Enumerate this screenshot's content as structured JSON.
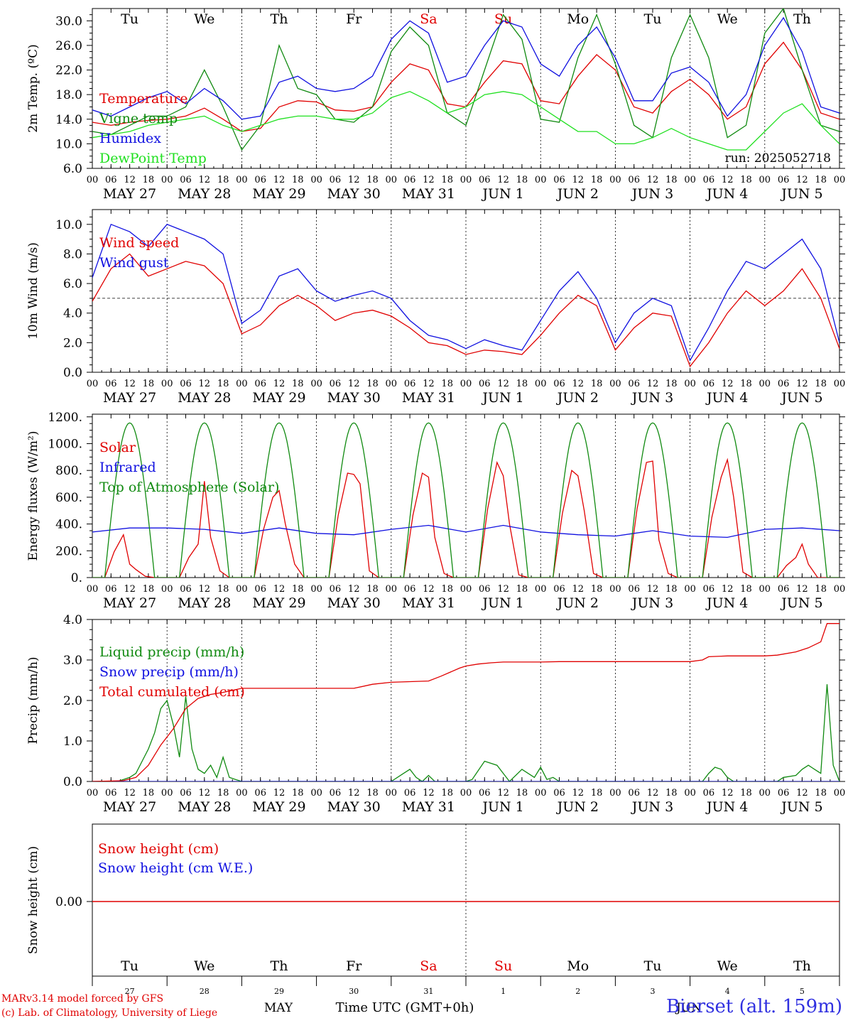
{
  "chart_data": [
    {
      "type": "line",
      "id": "temp",
      "ylabel": "2m Temp. (ºC)",
      "yticks": [
        "6.0",
        "10.0",
        "14.0",
        "18.0",
        "22.0",
        "26.0",
        "30.0"
      ],
      "ylim": [
        6,
        32
      ],
      "xlim_hours": [
        0,
        240
      ],
      "annotation": "run: 2025052718",
      "series": [
        {
          "name": "Temperature",
          "color": "#e00000",
          "x": [
            0,
            6,
            12,
            18,
            24,
            30,
            36,
            42,
            48,
            54,
            60,
            66,
            72,
            78,
            84,
            90,
            96,
            102,
            108,
            114,
            120,
            126,
            132,
            138,
            144,
            150,
            156,
            162,
            168,
            174,
            180,
            186,
            192,
            198,
            204,
            210,
            216,
            222,
            228,
            234,
            240
          ],
          "y": [
            13.5,
            13,
            13.5,
            13.8,
            14,
            14.5,
            15.8,
            14,
            12,
            12.5,
            16,
            17,
            16.8,
            15.5,
            15.3,
            16,
            20,
            23,
            22,
            16.5,
            16,
            20,
            23.5,
            23,
            17,
            16.5,
            21,
            24.5,
            22,
            16,
            15,
            18.5,
            20.5,
            18,
            14,
            16,
            23,
            26.5,
            22,
            15,
            14
          ]
        },
        {
          "name": "Vigne temp",
          "color": "#108a10",
          "x": [
            0,
            6,
            12,
            18,
            24,
            30,
            36,
            42,
            48,
            54,
            60,
            66,
            72,
            78,
            84,
            90,
            96,
            102,
            108,
            114,
            120,
            126,
            132,
            138,
            144,
            150,
            156,
            162,
            168,
            174,
            180,
            186,
            192,
            198,
            204,
            210,
            216,
            222,
            228,
            234,
            240
          ],
          "y": [
            12,
            11.5,
            13,
            14.5,
            14.5,
            16,
            22,
            16,
            9,
            13,
            26,
            19,
            18,
            14,
            13.5,
            16,
            25,
            29,
            26,
            15,
            13,
            22,
            31,
            27,
            14,
            13.5,
            24,
            31,
            23,
            13,
            11,
            24,
            31,
            24,
            11,
            13,
            28,
            32,
            22,
            13,
            12
          ]
        },
        {
          "name": "Humidex",
          "color": "#1010e0",
          "x": [
            0,
            6,
            12,
            18,
            24,
            30,
            36,
            42,
            48,
            54,
            60,
            66,
            72,
            78,
            84,
            90,
            96,
            102,
            108,
            114,
            120,
            126,
            132,
            138,
            144,
            150,
            156,
            162,
            168,
            174,
            180,
            186,
            192,
            198,
            204,
            210,
            216,
            222,
            228,
            234,
            240
          ],
          "y": [
            15.5,
            14.5,
            16,
            17.5,
            18.5,
            16.5,
            19,
            17,
            14,
            14.5,
            20,
            21,
            19,
            18.5,
            19,
            21,
            27,
            30,
            28,
            20,
            21,
            26,
            30,
            29,
            23,
            21,
            26,
            29,
            24,
            17,
            17,
            21.5,
            22.5,
            20,
            14.5,
            18,
            26,
            30.5,
            25,
            16,
            15
          ]
        },
        {
          "name": "DewPoint Temp",
          "color": "#20e020",
          "x": [
            0,
            6,
            12,
            18,
            24,
            30,
            36,
            42,
            48,
            54,
            60,
            66,
            72,
            78,
            84,
            90,
            96,
            102,
            108,
            114,
            120,
            126,
            132,
            138,
            144,
            150,
            156,
            162,
            168,
            174,
            180,
            186,
            192,
            198,
            204,
            210,
            216,
            222,
            228,
            234,
            240
          ],
          "y": [
            11,
            11.5,
            12,
            13,
            13.5,
            14,
            14.5,
            13,
            12,
            13,
            14,
            14.5,
            14.5,
            14,
            14,
            15,
            17.5,
            18.5,
            17,
            15,
            16,
            18,
            18.5,
            18,
            16,
            14,
            12,
            12,
            10,
            10,
            11,
            12.5,
            11,
            10,
            9,
            9,
            12,
            15,
            16.5,
            13,
            10
          ]
        }
      ],
      "day_labels": [
        "Tu",
        "We",
        "Th",
        "Fr",
        "Sa",
        "Su",
        "Mo",
        "Tu",
        "We",
        "Th"
      ],
      "date_labels": [
        "MAY 27",
        "MAY 28",
        "MAY 29",
        "MAY 30",
        "MAY 31",
        "JUN  1",
        "JUN  2",
        "JUN  3",
        "JUN  4",
        "JUN  5"
      ]
    },
    {
      "type": "line",
      "id": "wind",
      "ylabel": "10m Wind (m/s)",
      "yticks": [
        "0.0",
        "2.0",
        "4.0",
        "6.0",
        "8.0",
        "10.0"
      ],
      "ylim": [
        0,
        11
      ],
      "reference_line": 5,
      "series": [
        {
          "name": "Wind speed",
          "color": "#e00000",
          "x": [
            0,
            6,
            12,
            18,
            24,
            30,
            36,
            42,
            48,
            54,
            60,
            66,
            72,
            78,
            84,
            90,
            96,
            102,
            108,
            114,
            120,
            126,
            132,
            138,
            144,
            150,
            156,
            162,
            168,
            174,
            180,
            186,
            192,
            198,
            204,
            210,
            216,
            222,
            228,
            234,
            240
          ],
          "y": [
            4.8,
            7,
            8,
            6.5,
            7,
            7.5,
            7.2,
            6,
            2.6,
            3.2,
            4.5,
            5.2,
            4.5,
            3.5,
            4,
            4.2,
            3.8,
            3,
            2,
            1.8,
            1.2,
            1.5,
            1.4,
            1.2,
            2.5,
            4,
            5.2,
            4.5,
            1.5,
            3,
            4,
            3.8,
            0.4,
            2,
            4,
            5.5,
            4.5,
            5.5,
            7,
            5,
            1.6
          ]
        },
        {
          "name": "Wind gust",
          "color": "#1010e0",
          "x": [
            0,
            6,
            12,
            18,
            24,
            30,
            36,
            42,
            48,
            54,
            60,
            66,
            72,
            78,
            84,
            90,
            96,
            102,
            108,
            114,
            120,
            126,
            132,
            138,
            144,
            150,
            156,
            162,
            168,
            174,
            180,
            186,
            192,
            198,
            204,
            210,
            216,
            222,
            228,
            234,
            240
          ],
          "y": [
            6.4,
            10,
            9.5,
            8.5,
            10,
            9.5,
            9,
            8,
            3.3,
            4.2,
            6.5,
            7,
            5.5,
            4.8,
            5.2,
            5.5,
            5,
            3.5,
            2.5,
            2.2,
            1.6,
            2.2,
            1.8,
            1.5,
            3.5,
            5.5,
            6.8,
            5,
            2,
            4,
            5,
            4.5,
            0.8,
            3,
            5.5,
            7.5,
            7,
            8,
            9,
            7,
            2
          ]
        }
      ],
      "date_labels": [
        "MAY 27",
        "MAY 28",
        "MAY 29",
        "MAY 30",
        "MAY 31",
        "JUN  1",
        "JUN  2",
        "JUN  3",
        "JUN  4",
        "JUN  5"
      ]
    },
    {
      "type": "line",
      "id": "energy",
      "ylabel": "Energy fluxes (W/m²)",
      "yticks": [
        "0.",
        "200.",
        "400.",
        "600.",
        "800.",
        "1000.",
        "1200."
      ],
      "ylim": [
        0,
        1220
      ],
      "series": [
        {
          "name": "Solar",
          "color": "#e00000",
          "days": [
            [
              320,
              100,
              60,
              10
            ],
            [
              250,
              720,
              300,
              50
            ],
            [
              600,
              650,
              400,
              100
            ],
            [
              780,
              770,
              700,
              50
            ],
            [
              780,
              750,
              300,
              30
            ],
            [
              860,
              760,
              400,
              20
            ],
            [
              800,
              760,
              500,
              30
            ],
            [
              860,
              870,
              280,
              30
            ],
            [
              750,
              880,
              600,
              40
            ],
            [
              150,
              250,
              100,
              0
            ]
          ]
        },
        {
          "name": "Infrared",
          "color": "#1010e0",
          "x": [
            0,
            12,
            24,
            36,
            48,
            60,
            72,
            84,
            96,
            108,
            120,
            132,
            144,
            156,
            168,
            180,
            192,
            204,
            216,
            228,
            240
          ],
          "y": [
            340,
            370,
            370,
            360,
            330,
            370,
            330,
            320,
            360,
            390,
            340,
            390,
            340,
            320,
            310,
            350,
            310,
            300,
            360,
            370,
            350
          ]
        },
        {
          "name": "Top of Atmosphere (Solar)",
          "color": "#108a10",
          "peak": 1155,
          "sunrise_hour": 4,
          "sunset_hour": 20
        }
      ],
      "date_labels": [
        "MAY 27",
        "MAY 28",
        "MAY 29",
        "MAY 30",
        "MAY 31",
        "JUN  1",
        "JUN  2",
        "JUN  3",
        "JUN  4",
        "JUN  5"
      ]
    },
    {
      "type": "line",
      "id": "precip",
      "ylabel": "Precip (mm/h)",
      "yticks": [
        "0.0",
        "1.0",
        "2.0",
        "3.0",
        "4.0"
      ],
      "ylim": [
        0,
        4
      ],
      "series": [
        {
          "name": "Liquid precip (mm/h)",
          "color": "#108a10",
          "x": [
            0,
            8,
            10,
            12,
            14,
            16,
            18,
            20,
            22,
            24,
            26,
            28,
            30,
            32,
            34,
            36,
            38,
            40,
            42,
            44,
            46,
            48,
            96,
            100,
            102,
            104,
            106,
            108,
            110,
            114,
            120,
            122,
            126,
            130,
            132,
            134,
            138,
            142,
            144,
            146,
            148,
            150,
            152,
            196,
            198,
            200,
            202,
            204,
            206,
            212,
            220,
            222,
            226,
            228,
            230,
            232,
            234,
            236,
            238,
            240
          ],
          "y": [
            0,
            0,
            0.05,
            0.1,
            0.2,
            0.5,
            0.8,
            1.2,
            1.8,
            2.0,
            1.4,
            0.6,
            2.1,
            0.8,
            0.3,
            0.2,
            0.4,
            0.1,
            0.6,
            0.1,
            0.05,
            0,
            0,
            0.2,
            0.3,
            0.1,
            0,
            0.15,
            0,
            0,
            0,
            0.05,
            0.5,
            0.4,
            0.2,
            0,
            0.3,
            0.1,
            0.35,
            0.05,
            0.1,
            0,
            0,
            0,
            0.2,
            0.35,
            0.3,
            0.1,
            0,
            0,
            0,
            0.1,
            0.15,
            0.3,
            0.4,
            0.3,
            0.2,
            2.4,
            0.4,
            0
          ]
        },
        {
          "name": "Snow precip (mm/h)",
          "color": "#1010e0",
          "x": [
            0,
            240
          ],
          "y": [
            0,
            0
          ]
        },
        {
          "name": "Total cumulated (cm)",
          "color": "#e00000",
          "x": [
            0,
            10,
            14,
            18,
            22,
            26,
            30,
            34,
            38,
            42,
            48,
            72,
            84,
            90,
            96,
            108,
            112,
            118,
            120,
            124,
            128,
            132,
            144,
            150,
            168,
            180,
            192,
            196,
            198,
            204,
            216,
            220,
            226,
            230,
            234,
            236,
            240
          ],
          "y": [
            0,
            0.02,
            0.1,
            0.4,
            0.9,
            1.3,
            1.8,
            2.05,
            2.15,
            2.2,
            2.3,
            2.3,
            2.3,
            2.4,
            2.45,
            2.48,
            2.6,
            2.8,
            2.85,
            2.9,
            2.93,
            2.95,
            2.95,
            2.96,
            2.96,
            2.96,
            2.96,
            3.0,
            3.08,
            3.1,
            3.1,
            3.12,
            3.2,
            3.3,
            3.45,
            3.9,
            3.9
          ]
        }
      ],
      "date_labels": [
        "MAY 27",
        "MAY 28",
        "MAY 29",
        "MAY 30",
        "MAY 31",
        "JUN  1",
        "JUN  2",
        "JUN  3",
        "JUN  4",
        "JUN  5"
      ]
    },
    {
      "type": "line",
      "id": "snow",
      "ylabel": "Snow height (cm)",
      "yticks": [
        "0.00"
      ],
      "series": [
        {
          "name": "Snow height (cm)",
          "color": "#e00000",
          "x": [
            0,
            240
          ],
          "y": [
            0,
            0
          ]
        },
        {
          "name": "Snow height (cm W.E.)",
          "color": "#1010e0",
          "x": [
            0,
            240
          ],
          "y": [
            0,
            0
          ]
        }
      ],
      "day_labels": [
        "Tu",
        "We",
        "Th",
        "Fr",
        "Sa",
        "Su",
        "Mo",
        "Tu",
        "We",
        "Th"
      ],
      "day_numbers": [
        "27",
        "28",
        "29",
        "30",
        "31",
        "1",
        "2",
        "3",
        "4",
        "5"
      ],
      "month_labels": [
        "MAY",
        "JUN"
      ],
      "xlabel": "Time UTC (GMT+0h)"
    }
  ],
  "hour_ticks": [
    "00",
    "06",
    "12",
    "18"
  ],
  "weekend_color": "#e00000",
  "footer": {
    "credit_line1": "MARv3.14 model forced by GFS",
    "credit_line2": "(c) Lab. of Climatology, University of Liege",
    "station": "Bierset (alt. 159m)"
  }
}
